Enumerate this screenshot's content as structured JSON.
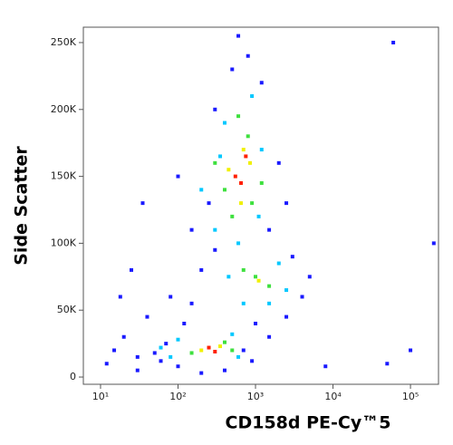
{
  "chart_data": {
    "type": "scatter",
    "xlabel": "CD158d PE-Cy™5",
    "ylabel": "Side Scatter",
    "xscale": "log",
    "xlim": [
      6,
      230000
    ],
    "ylim": [
      -5400,
      261500
    ],
    "xticks": [
      {
        "value": 10,
        "label": "10¹"
      },
      {
        "value": 100,
        "label": "10²"
      },
      {
        "value": 1000,
        "label": "10³"
      },
      {
        "value": 10000,
        "label": "10⁴"
      },
      {
        "value": 100000,
        "label": "10⁵"
      }
    ],
    "yticks": [
      0,
      {
        "value": 50000,
        "label": "50K"
      },
      {
        "value": 100000,
        "label": "100K"
      },
      {
        "value": 150000,
        "label": "150K"
      },
      {
        "value": 200000,
        "label": "200K"
      },
      {
        "value": 250000,
        "label": "250K"
      }
    ],
    "series": [
      {
        "color": "#1a1aff",
        "x": [
          30,
          50,
          70,
          60,
          15,
          20,
          40,
          80,
          120,
          150,
          200,
          300,
          150,
          250,
          100,
          300,
          500,
          800,
          1200,
          2000,
          1500,
          3000,
          5000,
          4000,
          2500,
          1000,
          700,
          900,
          400,
          200,
          12,
          18,
          25,
          35,
          600,
          2500,
          8000,
          50000,
          100000,
          200000,
          60000,
          30,
          100,
          1500
        ],
        "y": [
          15000,
          18000,
          25000,
          12000,
          20000,
          30000,
          45000,
          60000,
          40000,
          55000,
          80000,
          95000,
          110000,
          130000,
          150000,
          200000,
          230000,
          240000,
          220000,
          160000,
          110000,
          90000,
          75000,
          60000,
          45000,
          40000,
          20000,
          12000,
          5000,
          3000,
          10000,
          60000,
          80000,
          130000,
          255000,
          130000,
          8000,
          10000,
          20000,
          100000,
          250000,
          5000,
          8000,
          30000
        ]
      },
      {
        "color": "#00c8ff",
        "x": [
          80,
          100,
          500,
          600,
          300,
          200,
          400,
          900,
          1200,
          1100,
          600,
          700,
          2000,
          2500,
          1500,
          450,
          350,
          60
        ],
        "y": [
          15000,
          28000,
          32000,
          15000,
          110000,
          140000,
          190000,
          210000,
          170000,
          120000,
          100000,
          55000,
          85000,
          65000,
          55000,
          75000,
          165000,
          22000
        ]
      },
      {
        "color": "#3ee03e",
        "x": [
          150,
          400,
          500,
          1000,
          1500,
          700,
          400,
          800,
          900,
          500,
          600,
          300,
          1200
        ],
        "y": [
          18000,
          26000,
          20000,
          75000,
          68000,
          80000,
          140000,
          180000,
          130000,
          120000,
          195000,
          160000,
          145000
        ]
      },
      {
        "color": "#f0f000",
        "x": [
          200,
          350,
          450,
          700,
          650,
          850,
          1100
        ],
        "y": [
          20000,
          23000,
          155000,
          170000,
          130000,
          160000,
          72000
        ]
      },
      {
        "color": "#ff2000",
        "x": [
          250,
          300,
          550,
          650,
          750
        ],
        "y": [
          22000,
          19000,
          150000,
          145000,
          165000
        ]
      }
    ]
  }
}
